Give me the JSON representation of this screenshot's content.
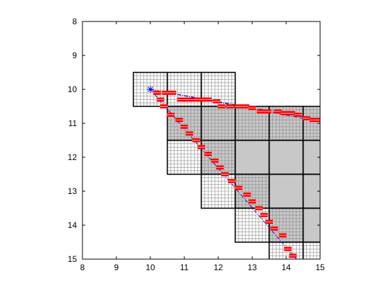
{
  "chart_data": {
    "type": "scatter",
    "title": "",
    "xlabel": "",
    "ylabel": "",
    "xlim": [
      8,
      15
    ],
    "ylim": [
      8,
      15
    ],
    "y_reversed": true,
    "grid": false,
    "legend": "none",
    "x_ticks": [
      "8",
      "9",
      "10",
      "11",
      "12",
      "13",
      "14",
      "15"
    ],
    "y_ticks": [
      "8",
      "9",
      "10",
      "11",
      "12",
      "13",
      "14",
      "15"
    ],
    "colors": {
      "cell_fill": "#c8c8c8",
      "fine_grid": "#8a8a8a",
      "coarse_grid": "#000000",
      "marker": "#ff0000",
      "ray": "#0000cc"
    },
    "origin": {
      "x": 10,
      "y": 10,
      "marker": "star"
    },
    "shaded_regions": [
      {
        "x0": 10.5,
        "x1": 15,
        "y0": 10.5,
        "y1": 11.5
      },
      {
        "x0": 11.5,
        "x1": 15,
        "y0": 11.5,
        "y1": 12.5
      },
      {
        "x0": 12.5,
        "x1": 15,
        "y0": 12.5,
        "y1": 13.5
      },
      {
        "x0": 13.5,
        "x1": 15,
        "y0": 13.5,
        "y1": 14.5
      }
    ],
    "coarse_cells": [
      [
        9.5,
        9.5
      ],
      [
        10.5,
        9.5
      ],
      [
        11.5,
        9.5
      ],
      [
        10.5,
        10.5
      ],
      [
        11.5,
        10.5
      ],
      [
        12.5,
        10.5
      ],
      [
        13.5,
        10.5
      ],
      [
        14.5,
        10.5
      ],
      [
        10.5,
        11.5
      ],
      [
        11.5,
        11.5
      ],
      [
        12.5,
        11.5
      ],
      [
        13.5,
        11.5
      ],
      [
        14.5,
        11.5
      ],
      [
        11.5,
        12.5
      ],
      [
        12.5,
        12.5
      ],
      [
        13.5,
        12.5
      ],
      [
        14.5,
        12.5
      ],
      [
        12.5,
        13.5
      ],
      [
        13.5,
        13.5
      ],
      [
        14.5,
        13.5
      ],
      [
        13.5,
        14.5
      ],
      [
        14.5,
        14.5
      ]
    ],
    "fine_grid_cells": [
      [
        9.5,
        9.5
      ],
      [
        10.5,
        9.5
      ],
      [
        11.5,
        9.5
      ],
      [
        10.5,
        10.5
      ],
      [
        11.5,
        10.5
      ],
      [
        12.5,
        10.5
      ],
      [
        13.5,
        10.5
      ],
      [
        14.5,
        10.5
      ],
      [
        10.5,
        11.5
      ],
      [
        11.5,
        11.5
      ],
      [
        11.5,
        12.5
      ],
      [
        12.5,
        12.5
      ],
      [
        12.5,
        13.5
      ],
      [
        13.5,
        13.5
      ],
      [
        13.5,
        14.5
      ],
      [
        14.5,
        14.5
      ]
    ],
    "rays": [
      {
        "x": [
          10,
          15
        ],
        "y": [
          10,
          10.9
        ]
      },
      {
        "x": [
          10,
          15
        ],
        "y": [
          10,
          10.95
        ]
      },
      {
        "x": [
          10,
          14.3
        ],
        "y": [
          10,
          15
        ]
      }
    ],
    "series": [
      {
        "marker": "bar",
        "x": [
          10.2,
          10.3,
          10.4,
          10.6,
          10.85,
          11.0,
          11.15,
          11.35,
          11.5,
          11.7,
          11.9,
          12.05,
          12.2,
          12.4,
          12.6,
          12.85,
          13.0,
          13.2,
          13.35,
          13.5,
          13.65,
          13.9,
          14.05,
          14.2
        ],
        "y": [
          10.1,
          10.3,
          10.5,
          10.75,
          10.9,
          11.1,
          11.3,
          11.5,
          11.7,
          11.9,
          12.1,
          12.3,
          12.5,
          12.7,
          12.9,
          13.1,
          13.3,
          13.5,
          13.7,
          13.9,
          14.1,
          14.3,
          14.7,
          14.9
        ]
      },
      {
        "marker": "bar",
        "x": [
          10.2,
          10.45,
          10.65,
          10.9,
          11.1,
          11.3,
          11.5,
          11.7,
          11.95,
          12.1,
          12.35,
          12.6,
          12.8,
          13.0,
          13.25,
          13.45,
          13.75,
          13.95,
          14.15,
          14.35,
          14.6,
          14.8,
          14.95
        ],
        "y": [
          10.1,
          10.1,
          10.1,
          10.3,
          10.3,
          10.3,
          10.3,
          10.3,
          10.35,
          10.5,
          10.5,
          10.5,
          10.5,
          10.55,
          10.65,
          10.65,
          10.65,
          10.7,
          10.7,
          10.75,
          10.85,
          10.9,
          10.9
        ]
      }
    ]
  }
}
